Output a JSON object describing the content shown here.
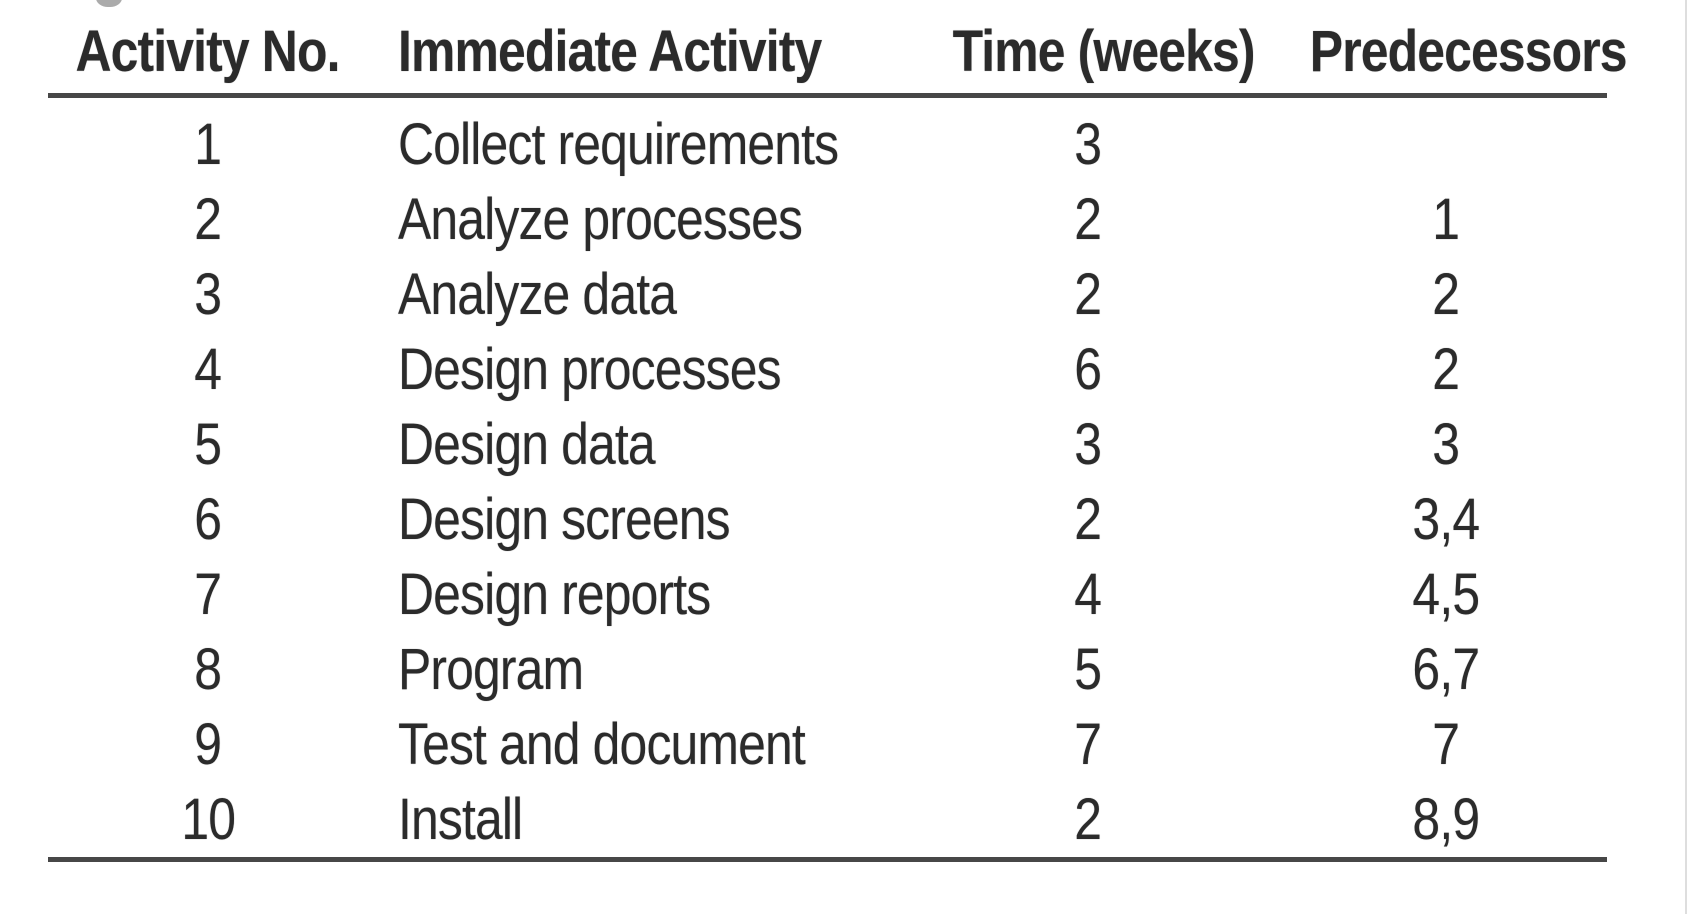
{
  "page": {
    "background": "#ffffff",
    "text_color": "#2b2b2b",
    "rule_color": "#474747"
  },
  "table": {
    "columns": [
      "Activity No.",
      "Immediate Activity",
      "Time (weeks)",
      "Predecessors"
    ],
    "rows": [
      {
        "no": "1",
        "activity": "Collect requirements",
        "time": "3",
        "predecessors": ""
      },
      {
        "no": "2",
        "activity": "Analyze processes",
        "time": "2",
        "predecessors": "1"
      },
      {
        "no": "3",
        "activity": "Analyze data",
        "time": "2",
        "predecessors": "2"
      },
      {
        "no": "4",
        "activity": "Design processes",
        "time": "6",
        "predecessors": "2"
      },
      {
        "no": "5",
        "activity": "Design data",
        "time": "3",
        "predecessors": "3"
      },
      {
        "no": "6",
        "activity": "Design screens",
        "time": "2",
        "predecessors": "3,4"
      },
      {
        "no": "7",
        "activity": "Design reports",
        "time": "4",
        "predecessors": "4,5"
      },
      {
        "no": "8",
        "activity": "Program",
        "time": "5",
        "predecessors": "6,7"
      },
      {
        "no": "9",
        "activity": "Test and document",
        "time": "7",
        "predecessors": "7"
      },
      {
        "no": "10",
        "activity": "Install",
        "time": "2",
        "predecessors": "8,9"
      }
    ]
  }
}
